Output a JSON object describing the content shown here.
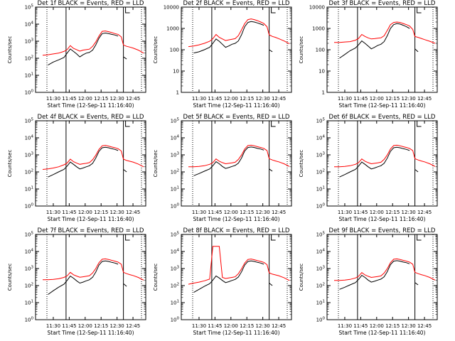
{
  "chart_data": {
    "type": "line",
    "layout": "3x3 grid",
    "shared": {
      "xlabel": "Start Time (12-Sep-11 11:16:40)",
      "ylabel": "Counts/sec",
      "x_tick_labels": [
        "11:30",
        "11:45",
        "12:00",
        "12:15",
        "12:30",
        "12:45"
      ],
      "x_tick_values_min": [
        30,
        45,
        60,
        75,
        90,
        105
      ],
      "xlim_min": [
        13.3,
        117
      ],
      "y_scale": "log",
      "dotted_vlines_min": [
        24,
        113
      ],
      "solid_vlines_min": [
        42,
        96
      ],
      "series": [
        {
          "key": "events",
          "color": "#000000"
        },
        {
          "key": "lld",
          "color": "#ff0000"
        }
      ],
      "x_min": [
        20,
        25,
        30,
        35,
        40,
        43,
        46,
        49,
        52,
        55,
        58,
        61,
        64,
        67,
        70,
        73,
        76,
        79,
        82,
        85,
        88,
        91,
        94,
        96,
        99,
        102,
        105,
        110,
        115
      ]
    },
    "panels": [
      {
        "title": "Det 1f BLACK = Events, RED = LLD",
        "ylim": [
          1,
          100000
        ],
        "y_tick_labels": [
          "10^0",
          "10^1",
          "10^2",
          "10^3",
          "10^4",
          "10^5"
        ],
        "events": [
          null,
          40,
          60,
          80,
          110,
          200,
          350,
          250,
          180,
          120,
          160,
          200,
          220,
          300,
          600,
          1500,
          2800,
          3000,
          2800,
          2500,
          2300,
          2000,
          null,
          120,
          90,
          null,
          null,
          null,
          null
        ],
        "lld": [
          150,
          160,
          180,
          200,
          250,
          320,
          550,
          380,
          320,
          260,
          300,
          320,
          340,
          500,
          900,
          2000,
          3800,
          4000,
          3600,
          3200,
          2800,
          2500,
          1800,
          600,
          500,
          450,
          400,
          300,
          200
        ]
      },
      {
        "title": "Det 2f BLACK = Events, RED = LLD",
        "ylim": [
          1,
          10000
        ],
        "y_tick_labels": [
          "1",
          "10",
          "100",
          "1000",
          "10000"
        ],
        "events": [
          null,
          70,
          80,
          100,
          130,
          200,
          320,
          250,
          180,
          130,
          150,
          180,
          200,
          260,
          500,
          1200,
          1900,
          2100,
          2000,
          1800,
          1600,
          1400,
          null,
          100,
          80,
          null,
          null,
          null,
          null
        ],
        "lld": [
          140,
          150,
          170,
          200,
          250,
          330,
          520,
          380,
          320,
          270,
          290,
          310,
          330,
          460,
          850,
          1700,
          2600,
          2800,
          2600,
          2300,
          2000,
          1700,
          1200,
          500,
          420,
          380,
          330,
          260,
          190
        ]
      },
      {
        "title": "Det 3f BLACK = Events, RED = LLD",
        "ylim": [
          1,
          10000
        ],
        "y_tick_labels": [
          "1",
          "10",
          "100",
          "1000",
          "10000"
        ],
        "events": [
          null,
          40,
          60,
          90,
          120,
          170,
          260,
          200,
          150,
          110,
          130,
          160,
          180,
          240,
          450,
          1000,
          1500,
          1700,
          1600,
          1400,
          1200,
          1000,
          null,
          110,
          80,
          null,
          null,
          null,
          null
        ],
        "lld": [
          220,
          220,
          230,
          240,
          280,
          340,
          520,
          420,
          360,
          320,
          330,
          350,
          360,
          450,
          800,
          1500,
          1900,
          2000,
          1900,
          1700,
          1500,
          1300,
          900,
          420,
          380,
          340,
          300,
          250,
          200
        ]
      },
      {
        "title": "Det 4f BLACK = Events, RED = LLD",
        "ylim": [
          1,
          100000
        ],
        "y_tick_labels": [
          "10^0",
          "10^1",
          "10^2",
          "10^3",
          "10^4",
          "10^5"
        ],
        "events": [
          null,
          50,
          70,
          100,
          140,
          220,
          380,
          280,
          200,
          150,
          170,
          200,
          230,
          320,
          650,
          1600,
          2600,
          2800,
          2600,
          2300,
          2100,
          1800,
          null,
          140,
          100,
          null,
          null,
          null,
          null
        ],
        "lld": [
          140,
          150,
          170,
          200,
          260,
          330,
          560,
          400,
          330,
          280,
          300,
          320,
          350,
          520,
          950,
          2100,
          3400,
          3600,
          3300,
          2900,
          2600,
          2300,
          1700,
          560,
          470,
          420,
          380,
          290,
          200
        ]
      },
      {
        "title": "Det 5f BLACK = Events, RED = LLD",
        "ylim": [
          1,
          100000
        ],
        "y_tick_labels": [
          "10^0",
          "10^1",
          "10^2",
          "10^3",
          "10^4",
          "10^5"
        ],
        "events": [
          null,
          60,
          80,
          110,
          150,
          230,
          400,
          300,
          210,
          160,
          180,
          210,
          240,
          330,
          650,
          1700,
          2700,
          2900,
          2700,
          2400,
          2200,
          1900,
          null,
          150,
          110,
          null,
          null,
          null,
          null
        ],
        "lld": [
          200,
          200,
          210,
          230,
          280,
          350,
          580,
          420,
          350,
          300,
          320,
          340,
          370,
          540,
          980,
          2200,
          3500,
          3700,
          3400,
          3000,
          2700,
          2400,
          1800,
          600,
          500,
          440,
          390,
          300,
          210
        ]
      },
      {
        "title": "Det 6f BLACK = Events, RED = LLD",
        "ylim": [
          1,
          100000
        ],
        "y_tick_labels": [
          "10^0",
          "10^1",
          "10^2",
          "10^3",
          "10^4",
          "10^5"
        ],
        "events": [
          null,
          50,
          70,
          100,
          140,
          220,
          380,
          280,
          200,
          150,
          170,
          200,
          230,
          320,
          640,
          1600,
          2600,
          2800,
          2600,
          2300,
          2100,
          1800,
          null,
          140,
          100,
          null,
          null,
          null,
          null
        ],
        "lld": [
          200,
          200,
          210,
          230,
          280,
          350,
          580,
          420,
          350,
          300,
          320,
          340,
          370,
          540,
          980,
          2200,
          3500,
          3700,
          3400,
          3000,
          2700,
          2400,
          1800,
          600,
          500,
          440,
          390,
          300,
          210
        ]
      },
      {
        "title": "Det 7f BLACK = Events, RED = LLD",
        "ylim": [
          1,
          100000
        ],
        "y_tick_labels": [
          "10^0",
          "10^1",
          "10^2",
          "10^3",
          "10^4",
          "10^5"
        ],
        "events": [
          null,
          30,
          50,
          80,
          120,
          200,
          360,
          270,
          190,
          140,
          160,
          190,
          220,
          310,
          620,
          1600,
          2600,
          2800,
          2600,
          2300,
          2100,
          1800,
          null,
          130,
          90,
          null,
          null,
          null,
          null
        ],
        "lld": [
          220,
          220,
          230,
          250,
          300,
          370,
          600,
          430,
          360,
          310,
          330,
          350,
          380,
          550,
          1000,
          2200,
          3500,
          3700,
          3400,
          3000,
          2700,
          2400,
          1800,
          600,
          500,
          440,
          390,
          300,
          210
        ]
      },
      {
        "title": "Det 8f BLACK = Events, RED = LLD",
        "ylim": [
          1,
          100000
        ],
        "y_tick_labels": [
          "10^0",
          "10^1",
          "10^2",
          "10^3",
          "10^4",
          "10^5"
        ],
        "events": [
          null,
          40,
          60,
          90,
          130,
          210,
          370,
          280,
          200,
          150,
          170,
          200,
          230,
          320,
          640,
          1600,
          2600,
          2800,
          2600,
          2300,
          2100,
          1800,
          null,
          140,
          100,
          null,
          null,
          null,
          null
        ],
        "lld": [
          120,
          140,
          160,
          190,
          240,
          20000,
          20000,
          20000,
          300,
          260,
          280,
          300,
          330,
          500,
          950,
          2100,
          3400,
          3600,
          3300,
          2900,
          2600,
          2300,
          1700,
          560,
          470,
          420,
          380,
          290,
          200
        ]
      },
      {
        "title": "Det 9f BLACK = Events, RED = LLD",
        "ylim": [
          1,
          100000
        ],
        "y_tick_labels": [
          "10^0",
          "10^1",
          "10^2",
          "10^3",
          "10^4",
          "10^5"
        ],
        "events": [
          null,
          60,
          80,
          110,
          150,
          230,
          400,
          300,
          210,
          160,
          180,
          210,
          240,
          330,
          650,
          1700,
          2700,
          2900,
          2700,
          2400,
          2200,
          1900,
          null,
          150,
          110,
          null,
          null,
          null,
          null
        ],
        "lld": [
          200,
          200,
          210,
          230,
          280,
          350,
          580,
          420,
          350,
          300,
          320,
          340,
          370,
          540,
          980,
          2200,
          3500,
          3700,
          3400,
          3000,
          2700,
          2400,
          1800,
          600,
          500,
          440,
          390,
          300,
          210
        ]
      }
    ]
  }
}
